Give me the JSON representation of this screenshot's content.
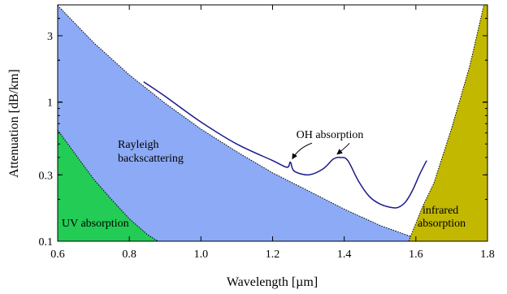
{
  "colors": {
    "uv_region": "#22cc55",
    "rayleigh_region": "#8caaf5",
    "infrared_region": "#c2b800",
    "measured_curve": "#1a1a8c",
    "frame": "#000000"
  },
  "chart_data": {
    "type": "area",
    "xlabel": "Wavelength [µm]",
    "ylabel": "Attenuation [dB/km]",
    "xlim": [
      0.6,
      1.8
    ],
    "ylim": [
      0.1,
      5.0
    ],
    "y_scale": "log",
    "grid": false,
    "x_ticks": [
      {
        "value": 0.6,
        "label": "0.6"
      },
      {
        "value": 0.8,
        "label": "0.8"
      },
      {
        "value": 1.0,
        "label": "1.0"
      },
      {
        "value": 1.2,
        "label": "1.2"
      },
      {
        "value": 1.4,
        "label": "1.4"
      },
      {
        "value": 1.6,
        "label": "1.6"
      },
      {
        "value": 1.8,
        "label": "1.8"
      }
    ],
    "y_ticks": [
      {
        "value": 0.1,
        "label": "0.1"
      },
      {
        "value": 0.3,
        "label": "0.3"
      },
      {
        "value": 1,
        "label": "1"
      },
      {
        "value": 3,
        "label": "3"
      }
    ],
    "series": [
      {
        "name": "UV absorption",
        "kind": "region",
        "x": [
          0.6,
          0.65,
          0.7,
          0.75,
          0.8,
          0.85,
          0.88
        ],
        "y": [
          0.63,
          0.42,
          0.28,
          0.2,
          0.145,
          0.112,
          0.1
        ]
      },
      {
        "name": "Rayleigh backscattering",
        "kind": "region",
        "x": [
          0.6,
          0.7,
          0.8,
          0.9,
          1.0,
          1.1,
          1.2,
          1.3,
          1.4,
          1.5,
          1.6,
          1.65
        ],
        "y": [
          4.95,
          2.68,
          1.57,
          0.98,
          0.64,
          0.44,
          0.31,
          0.23,
          0.17,
          0.13,
          0.105,
          0.1
        ]
      },
      {
        "name": "infrared\nabsorption",
        "kind": "region",
        "x": [
          1.58,
          1.62,
          1.65,
          1.7,
          1.75,
          1.79
        ],
        "y": [
          0.1,
          0.18,
          0.26,
          0.65,
          1.8,
          5.0
        ]
      },
      {
        "name": "",
        "kind": "line",
        "x": [
          0.84,
          0.9,
          1.0,
          1.1,
          1.2,
          1.24,
          1.25,
          1.26,
          1.3,
          1.34,
          1.37,
          1.39,
          1.41,
          1.44,
          1.47,
          1.5,
          1.53,
          1.55,
          1.57,
          1.59,
          1.61,
          1.63
        ],
        "y": [
          1.4,
          1.1,
          0.72,
          0.5,
          0.38,
          0.34,
          0.37,
          0.32,
          0.3,
          0.33,
          0.39,
          0.4,
          0.38,
          0.27,
          0.21,
          0.185,
          0.175,
          0.175,
          0.19,
          0.23,
          0.3,
          0.38
        ]
      }
    ],
    "annotations": [
      {
        "text": "OH absorption",
        "x": 1.36,
        "y": 0.55,
        "arrows_to": [
          {
            "x": 1.255,
            "y": 0.37
          },
          {
            "x": 1.38,
            "y": 0.4
          }
        ]
      }
    ],
    "labels": {
      "uv": "UV absorption",
      "rayleigh_line1": "Rayleigh",
      "rayleigh_line2": "backscattering",
      "ir_line1": "infrared",
      "ir_line2": "absorption"
    }
  }
}
